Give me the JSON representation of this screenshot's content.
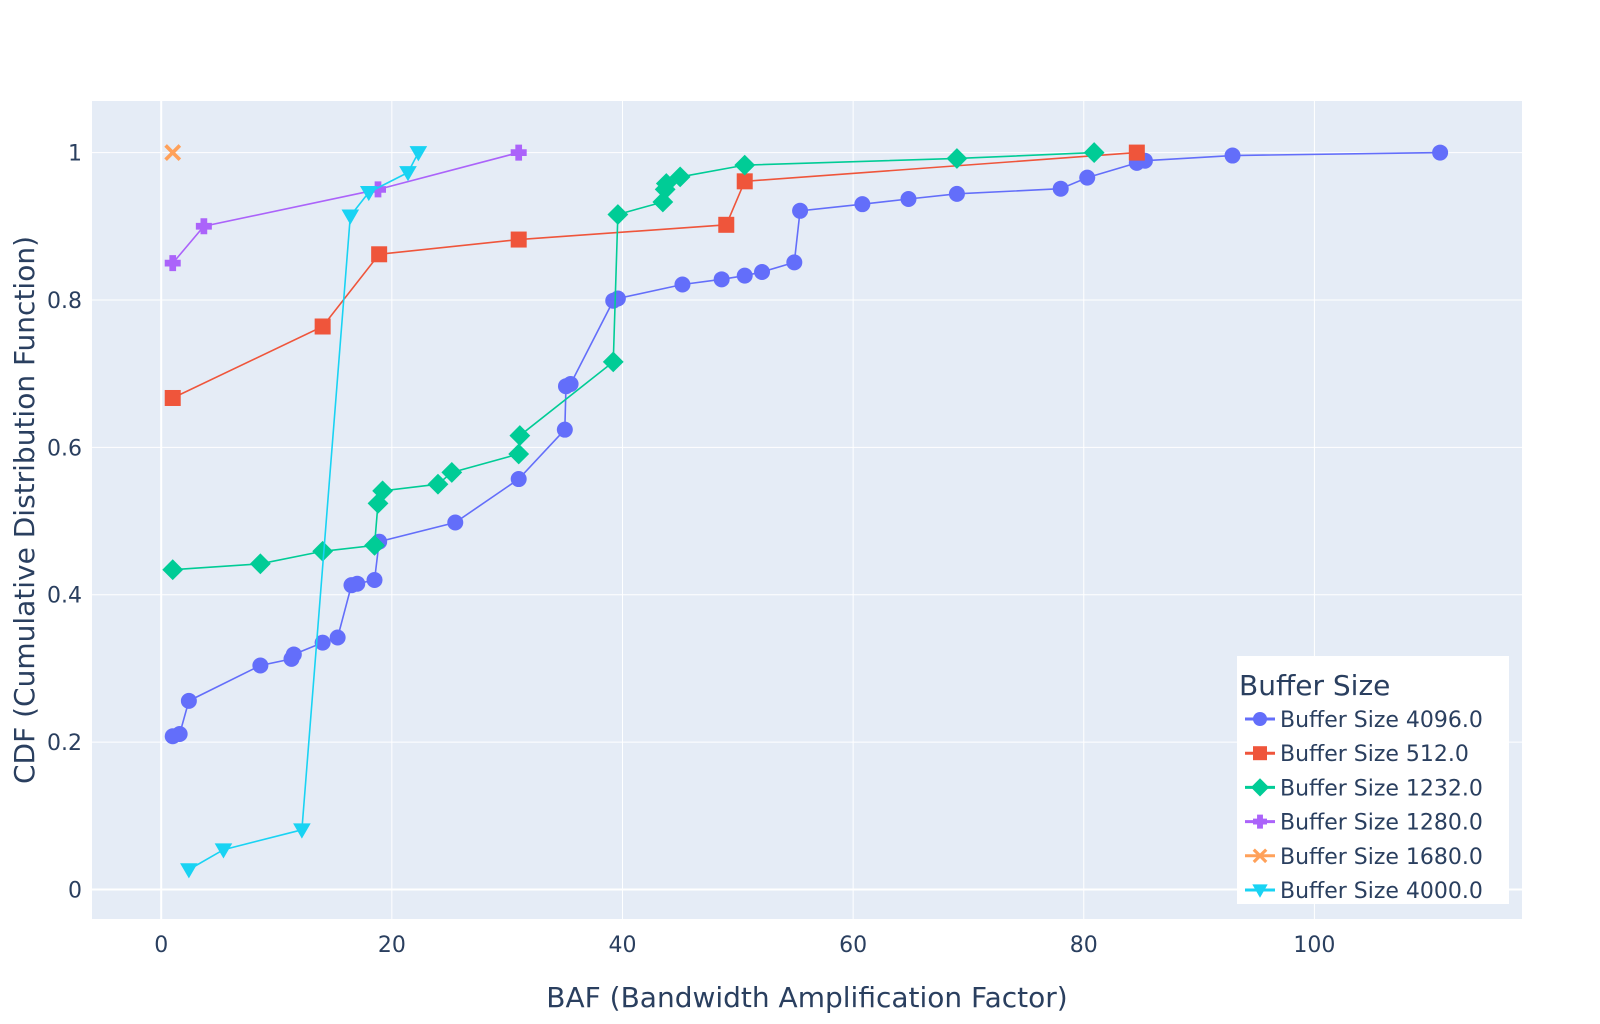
{
  "chart_data": {
    "type": "line",
    "xlabel": "BAF (Bandwidth Amplification Factor)",
    "ylabel": "CDF (Cumulative Distribution Function)",
    "xlim": [
      -6,
      118
    ],
    "ylim": [
      -0.04,
      1.07
    ],
    "x_ticks": [
      0,
      20,
      40,
      60,
      80,
      100
    ],
    "x_tick_labels": [
      "0",
      "20",
      "40",
      "60",
      "80",
      "100"
    ],
    "y_ticks": [
      0,
      0.2,
      0.4,
      0.6,
      0.8,
      1
    ],
    "y_tick_labels": [
      "0",
      "0.2",
      "0.4",
      "0.6",
      "0.8",
      "1"
    ],
    "grid": true,
    "plot_background": "#e5ecf6",
    "legend": {
      "title": "Buffer Size",
      "placement": "bottom-right"
    },
    "series": [
      {
        "name": "Buffer Size 4096.0",
        "color": "#636efa",
        "marker": "circle",
        "points": [
          [
            1.0,
            0.208
          ],
          [
            1.6,
            0.211
          ],
          [
            2.4,
            0.256
          ],
          [
            8.6,
            0.304
          ],
          [
            11.3,
            0.313
          ],
          [
            11.5,
            0.319
          ],
          [
            14.0,
            0.335
          ],
          [
            15.3,
            0.342
          ],
          [
            16.5,
            0.413
          ],
          [
            17.0,
            0.415
          ],
          [
            18.5,
            0.42
          ],
          [
            18.9,
            0.472
          ],
          [
            25.5,
            0.498
          ],
          [
            31.0,
            0.557
          ],
          [
            35.0,
            0.624
          ],
          [
            35.1,
            0.683
          ],
          [
            35.5,
            0.686
          ],
          [
            39.2,
            0.799
          ],
          [
            39.6,
            0.802
          ],
          [
            45.2,
            0.821
          ],
          [
            48.6,
            0.828
          ],
          [
            50.6,
            0.833
          ],
          [
            52.1,
            0.838
          ],
          [
            54.9,
            0.851
          ],
          [
            55.4,
            0.921
          ],
          [
            60.8,
            0.93
          ],
          [
            64.8,
            0.937
          ],
          [
            69.0,
            0.944
          ],
          [
            78.0,
            0.951
          ],
          [
            80.3,
            0.966
          ],
          [
            84.6,
            0.986
          ],
          [
            85.3,
            0.989
          ],
          [
            92.9,
            0.996
          ],
          [
            110.9,
            1.0
          ]
        ]
      },
      {
        "name": "Buffer Size 512.0",
        "color": "#ef553b",
        "marker": "square",
        "points": [
          [
            1.0,
            0.667
          ],
          [
            14.0,
            0.764
          ],
          [
            18.9,
            0.862
          ],
          [
            31.0,
            0.882
          ],
          [
            49.0,
            0.902
          ],
          [
            50.6,
            0.961
          ],
          [
            84.6,
            1.0
          ]
        ]
      },
      {
        "name": "Buffer Size 1232.0",
        "color": "#00cc96",
        "marker": "diamond",
        "points": [
          [
            1.0,
            0.434
          ],
          [
            8.6,
            0.442
          ],
          [
            14.0,
            0.459
          ],
          [
            18.5,
            0.467
          ],
          [
            18.8,
            0.524
          ],
          [
            19.2,
            0.541
          ],
          [
            24.0,
            0.55
          ],
          [
            25.2,
            0.566
          ],
          [
            31.0,
            0.591
          ],
          [
            31.1,
            0.616
          ],
          [
            39.2,
            0.716
          ],
          [
            39.6,
            0.916
          ],
          [
            43.5,
            0.933
          ],
          [
            43.7,
            0.95
          ],
          [
            43.8,
            0.958
          ],
          [
            45.0,
            0.967
          ],
          [
            50.6,
            0.983
          ],
          [
            69.0,
            0.992
          ],
          [
            80.9,
            1.0
          ]
        ]
      },
      {
        "name": "Buffer Size 1280.0",
        "color": "#ab63fa",
        "marker": "cross",
        "points": [
          [
            1.0,
            0.85
          ],
          [
            3.7,
            0.9
          ],
          [
            18.8,
            0.95
          ],
          [
            31.0,
            1.0
          ]
        ]
      },
      {
        "name": "Buffer Size 1680.0",
        "color": "#ffa15a",
        "marker": "x",
        "points": [
          [
            1.0,
            1.0
          ]
        ]
      },
      {
        "name": "Buffer Size 4000.0",
        "color": "#19d3f3",
        "marker": "triangle-down",
        "points": [
          [
            2.4,
            0.027
          ],
          [
            5.4,
            0.054
          ],
          [
            12.2,
            0.081
          ],
          [
            16.4,
            0.914
          ],
          [
            18.0,
            0.946
          ],
          [
            21.4,
            0.973
          ],
          [
            22.3,
            1.0
          ]
        ]
      }
    ]
  }
}
